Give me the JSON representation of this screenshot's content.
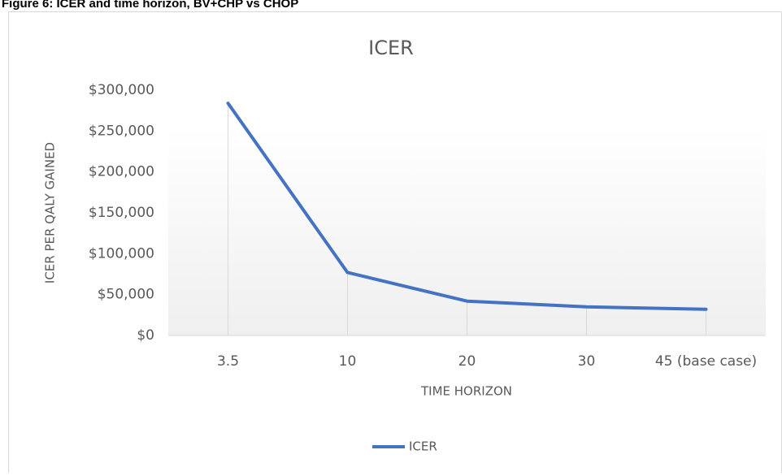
{
  "caption": "Figure 6: ICER and time horizon, BV+CHP vs CHOP",
  "chart_data": {
    "type": "line",
    "title": "ICER",
    "x_label": "TIME HORIZON",
    "y_label": "ICER PER QALY GAINED",
    "categories": [
      "3.5",
      "10",
      "20",
      "30",
      "45 (base case)"
    ],
    "series": [
      {
        "name": "ICER",
        "color": "#4472c4",
        "values": [
          284000,
          77000,
          42000,
          35000,
          32000
        ]
      }
    ],
    "ylim": [
      0,
      300000
    ],
    "yticks": [
      {
        "value": 0,
        "label": "$0"
      },
      {
        "value": 50000,
        "label": "$50,000"
      },
      {
        "value": 100000,
        "label": "$100,000"
      },
      {
        "value": 150000,
        "label": "$150,000"
      },
      {
        "value": 200000,
        "label": "$200,000"
      },
      {
        "value": 250000,
        "label": "$250,000"
      },
      {
        "value": 300000,
        "label": "$300,000"
      }
    ],
    "drop_lines": true,
    "legend": "bottom"
  }
}
